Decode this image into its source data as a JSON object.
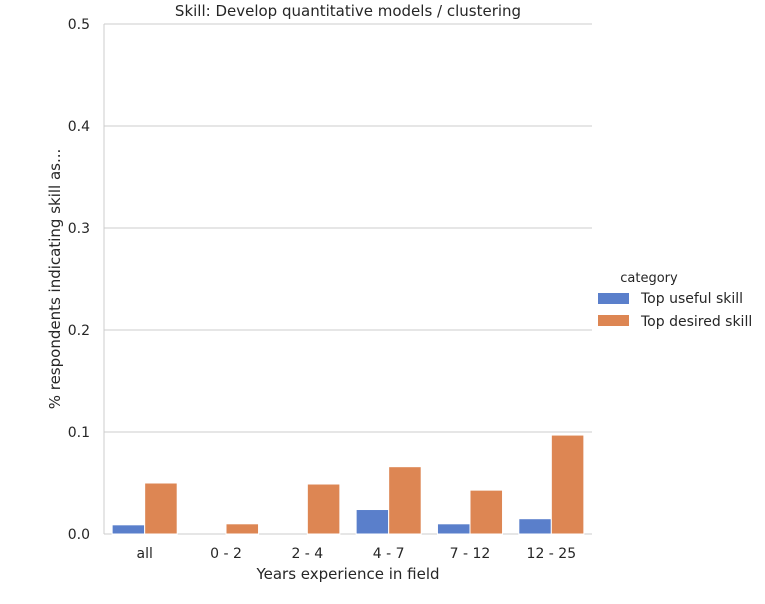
{
  "chart_data": {
    "type": "bar",
    "title": "Skill: Develop quantitative models / clustering",
    "xlabel": "Years experience in field",
    "ylabel": "% respondents indicating skill as...",
    "categories": [
      "all",
      "0 - 2",
      "2 - 4",
      "4 - 7",
      "7 - 12",
      "12 - 25"
    ],
    "ylim": [
      0,
      0.5
    ],
    "yticks": [
      "0.0",
      "0.1",
      "0.2",
      "0.3",
      "0.4",
      "0.5"
    ],
    "grid": "horizontal",
    "legend": {
      "title": "category",
      "placement": "right"
    },
    "series": [
      {
        "name": "Top useful skill",
        "color": "#5a7fcb",
        "values": [
          0.009,
          0.0,
          0.0,
          0.024,
          0.01,
          0.015
        ]
      },
      {
        "name": "Top desired skill",
        "color": "#dd8653",
        "values": [
          0.05,
          0.01,
          0.049,
          0.066,
          0.043,
          0.097
        ]
      }
    ]
  }
}
